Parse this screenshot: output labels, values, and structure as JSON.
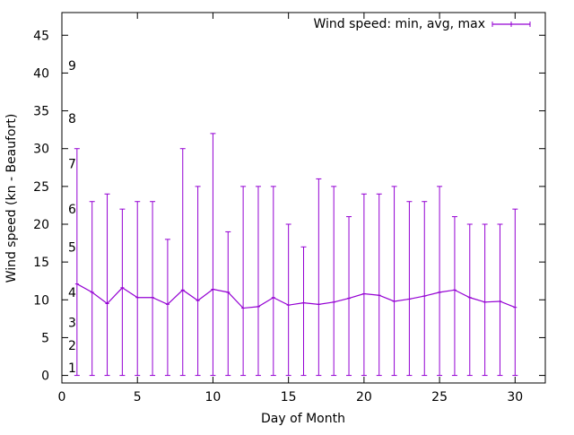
{
  "chart_data": {
    "type": "line",
    "title": "",
    "xlabel": "Day of Month",
    "ylabel": "Wind speed (kn - Beaufort)",
    "xlim": [
      0,
      32
    ],
    "ylim": [
      -1,
      48
    ],
    "x_ticks": [
      0,
      5,
      10,
      15,
      20,
      25,
      30
    ],
    "y_ticks": [
      0,
      5,
      10,
      15,
      20,
      25,
      30,
      35,
      40,
      45
    ],
    "grid": false,
    "legend_position": "top-right",
    "series_color": "#9400d3",
    "series": [
      {
        "name": "Wind speed: min, avg, max",
        "style": "yerrorlines",
        "x": [
          1,
          2,
          3,
          4,
          5,
          6,
          7,
          8,
          9,
          10,
          11,
          12,
          13,
          14,
          15,
          16,
          17,
          18,
          19,
          20,
          21,
          22,
          23,
          24,
          25,
          26,
          27,
          28,
          29,
          30
        ],
        "min": [
          0,
          0,
          0,
          0,
          0,
          0,
          0,
          0,
          0,
          0,
          0,
          0,
          0,
          0,
          0,
          0,
          0,
          0,
          0,
          0,
          0,
          0,
          0,
          0,
          0,
          0,
          0,
          0,
          0,
          0
        ],
        "avg": [
          12.1,
          11,
          9.5,
          11.6,
          10.3,
          10.3,
          9.4,
          11.3,
          9.9,
          11.4,
          11,
          8.9,
          9.1,
          10.3,
          9.3,
          9.6,
          9.4,
          9.7,
          10.2,
          10.8,
          10.6,
          9.8,
          10.1,
          10.5,
          11,
          11.3,
          10.3,
          9.7,
          9.8,
          9
        ],
        "max": [
          30,
          23,
          24,
          22,
          23,
          23,
          18,
          30,
          25,
          32,
          19,
          25,
          25,
          25,
          20,
          17,
          26,
          25,
          21,
          24,
          24,
          25,
          23,
          23,
          25,
          21,
          20,
          20,
          20,
          22
        ]
      }
    ],
    "annotations": [
      {
        "text": "1",
        "y": 1
      },
      {
        "text": "2",
        "y": 4
      },
      {
        "text": "3",
        "y": 7
      },
      {
        "text": "4",
        "y": 11
      },
      {
        "text": "5",
        "y": 17
      },
      {
        "text": "6",
        "y": 22
      },
      {
        "text": "7",
        "y": 28
      },
      {
        "text": "8",
        "y": 34
      },
      {
        "text": "9",
        "y": 41
      }
    ]
  }
}
